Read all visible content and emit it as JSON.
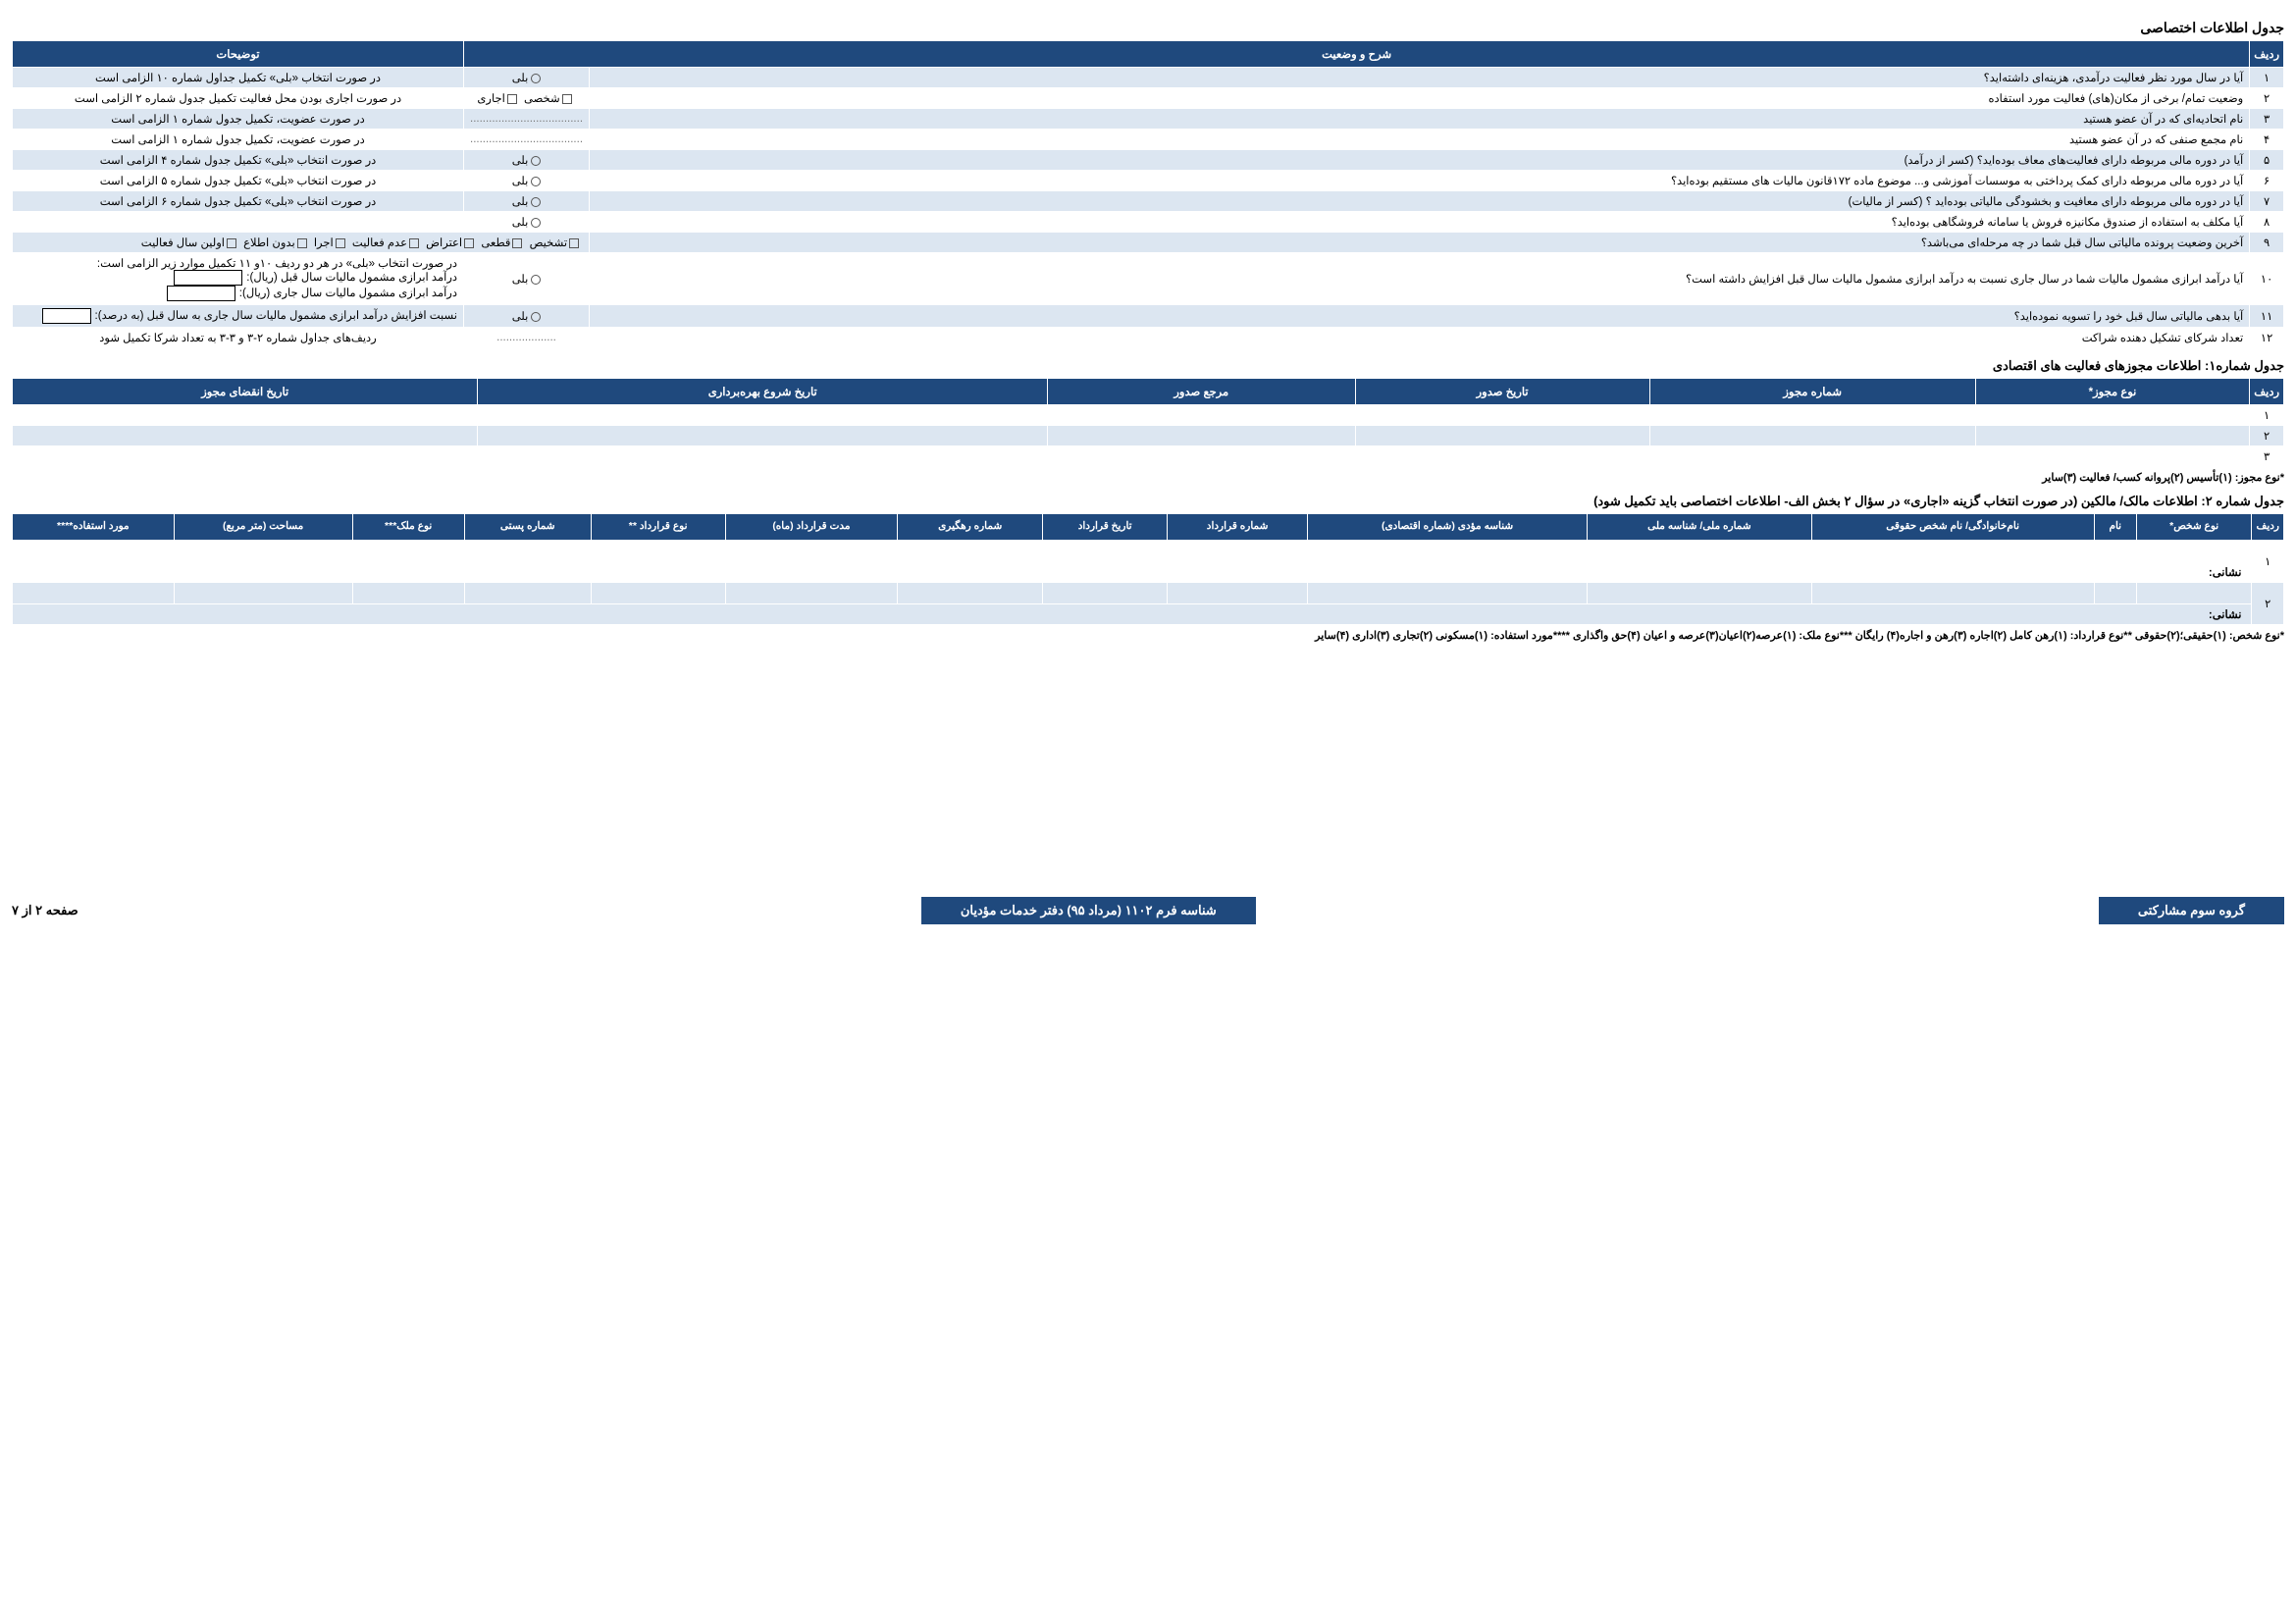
{
  "title_main": "جدول اطلاعات اختصاصی",
  "main_table": {
    "headers": {
      "row": "ردیف",
      "desc": "شرح و وضعیت",
      "notes": "توضیحات"
    },
    "rows": [
      {
        "n": "۱",
        "desc": "آیا در سال مورد نظر فعالیت درآمدی، هزینه‌ای داشته‌اید؟",
        "status": "بلی",
        "status_type": "radio",
        "note": "در صورت انتخاب «بلی» تکمیل جداول شماره ۱۰ الزامی است"
      },
      {
        "n": "۲",
        "desc": "وضعیت تمام/ برخی از مکان(های) فعالیت مورد استفاده",
        "status": "شخصی  اجاری",
        "status_type": "chk2",
        "note": "در صورت اجاری بودن محل فعالیت تکمیل جدول شماره ۲ الزامی است"
      },
      {
        "n": "۳",
        "desc": "نام اتحادیه‌ای که در آن عضو هستید",
        "status": "....................................",
        "status_type": "dots",
        "note": "در صورت عضویت، تکمیل جدول شماره ۱ الزامی است"
      },
      {
        "n": "۴",
        "desc": "نام مجمع صنفی که در آن عضو هستید",
        "status": "....................................",
        "status_type": "dots",
        "note": "در صورت عضویت، تکمیل جدول شماره ۱ الزامی است"
      },
      {
        "n": "۵",
        "desc": "آیا در دوره مالی مربوطه دارای فعالیت‌های معاف بوده‌اید؟ (کسر از درآمد)",
        "status": "بلی",
        "status_type": "radio",
        "note": "در صورت انتخاب «بلی» تکمیل جدول شماره ۴ الزامی است"
      },
      {
        "n": "۶",
        "desc": "آیا در دوره مالی مربوطه دارای کمک پرداختی به موسسات آموزشی و... موضوع ماده ۱۷۲قانون مالیات های مستقیم بوده‌اید؟",
        "status": "بلی",
        "status_type": "radio",
        "note": "در صورت انتخاب «بلی» تکمیل جدول شماره ۵ الزامی است"
      },
      {
        "n": "۷",
        "desc": "آیا در دوره مالی مربوطه دارای معافیت و بخشودگی مالیاتی بوده‌اید ؟ (کسر از مالیات)",
        "status": "بلی",
        "status_type": "radio",
        "note": "در صورت انتخاب «بلی» تکمیل جدول شماره ۶ الزامی است"
      },
      {
        "n": "۸",
        "desc": "آیا مکلف به استفاده از صندوق مکانیزه فروش یا سامانه فروشگاهی بوده‌اید؟",
        "status": "بلی",
        "status_type": "radio",
        "note": ""
      },
      {
        "n": "۹",
        "desc": "آخرین وضعیت پرونده مالیاتی سال قبل شما در چه مرحله‌ای می‌باشد؟",
        "status": "",
        "status_type": "none",
        "note_special": "row9"
      },
      {
        "n": "۱۰",
        "desc": "آیا درآمد ابرازی مشمول مالیات شما در سال جاری نسبت به درآمد ابرازی مشمول مالیات سال قبل افزایش داشته است؟",
        "status": "بلی",
        "status_type": "radio",
        "note_special": "row10"
      },
      {
        "n": "۱۱",
        "desc": "آیا بدهی مالیاتی سال قبل خود را تسویه نموده‌اید؟",
        "status": "بلی",
        "status_type": "radio",
        "note_special": "row11"
      },
      {
        "n": "۱۲",
        "desc": "تعداد شرکای تشکیل دهنده شراکت",
        "status": "...................",
        "status_type": "dots",
        "note": "ردیف‌های جداول شماره ۲-۳ و ۳-۳ به تعداد شرکا تکمیل شود"
      }
    ],
    "row9_opts": [
      "تشخیص",
      "قطعی",
      "اعتراض",
      "عدم فعالیت",
      "اجرا",
      "بدون اطلاع",
      "اولین سال فعالیت"
    ],
    "row10_lines": [
      "در صورت انتخاب «بلی» در هر دو ردیف ۱۰و ۱۱ تکمیل موارد زیر الزامی است:",
      "درآمد ابرازی مشمول مالیات سال قبل (ریال):",
      "درآمد ابرازی مشمول مالیات سال جاری (ریال):"
    ],
    "row11_line": "نسبت افزایش درآمد ابرازی مشمول مالیات سال جاری به سال قبل (به درصد):"
  },
  "table1_title": "جدول شماره۱: اطلاعات مجوزهای فعالیت های اقتصادی",
  "table1_headers": [
    "ردیف",
    "نوع مجوز*",
    "شماره مجوز",
    "تاریخ صدور",
    "مرجع صدور",
    "تاریخ شروع بهره‌برداری",
    "تاریخ انقضای مجوز"
  ],
  "table1_rows": [
    "۱",
    "۲",
    "۳"
  ],
  "table1_footnote": "*نوع مجوز: (۱)تأسیس (۲)پروانه کسب/ فعالیت (۳)سایر",
  "table2_title": "جدول شماره ۲: اطلاعات مالک/ مالکین (در صورت انتخاب گزینه «اجاری» در سؤال ۲ بخش الف- اطلاعات اختصاصی باید تکمیل شود)",
  "table2_headers": [
    "ردیف",
    "نوع شخص*",
    "نام",
    "نام‌خانوادگی/ نام شخص حقوقی",
    "شماره ملی/ شناسه ملی",
    "شناسه مؤدی (شماره اقتصادی)",
    "شماره قرارداد",
    "تاریخ قرارداد",
    "شماره رهگیری",
    "مدت قرارداد (ماه)",
    "نوع قرارداد **",
    "شماره پستی",
    "نوع ملک***",
    "مساحت (متر مربع)",
    "مورد استفاده****"
  ],
  "table2_rows": [
    "۱",
    "۲"
  ],
  "table2_address_label": "نشانی:",
  "table2_footnote": "*نوع شخص: (۱)حقیقی؛(۲)حقوقی  **نوع قرارداد: (۱)رهن کامل (۲)اجاره (۳)رهن و اجاره(۴) رایگان  ***نوع ملک: (۱)عرصه(۲)اعیان(۳)عرصه و اعیان (۴)حق واگذاری  ****مورد استفاده: (۱)مسکونی (۲)تجاری (۳)اداری (۴)سایر",
  "footer": {
    "group": "گروه سوم مشارکتی",
    "form": "شناسه فرم ۱۱۰۲ (مرداد ۹۵) دفتر خدمات مؤدیان",
    "page": "صفحه ۲ از ۷"
  }
}
